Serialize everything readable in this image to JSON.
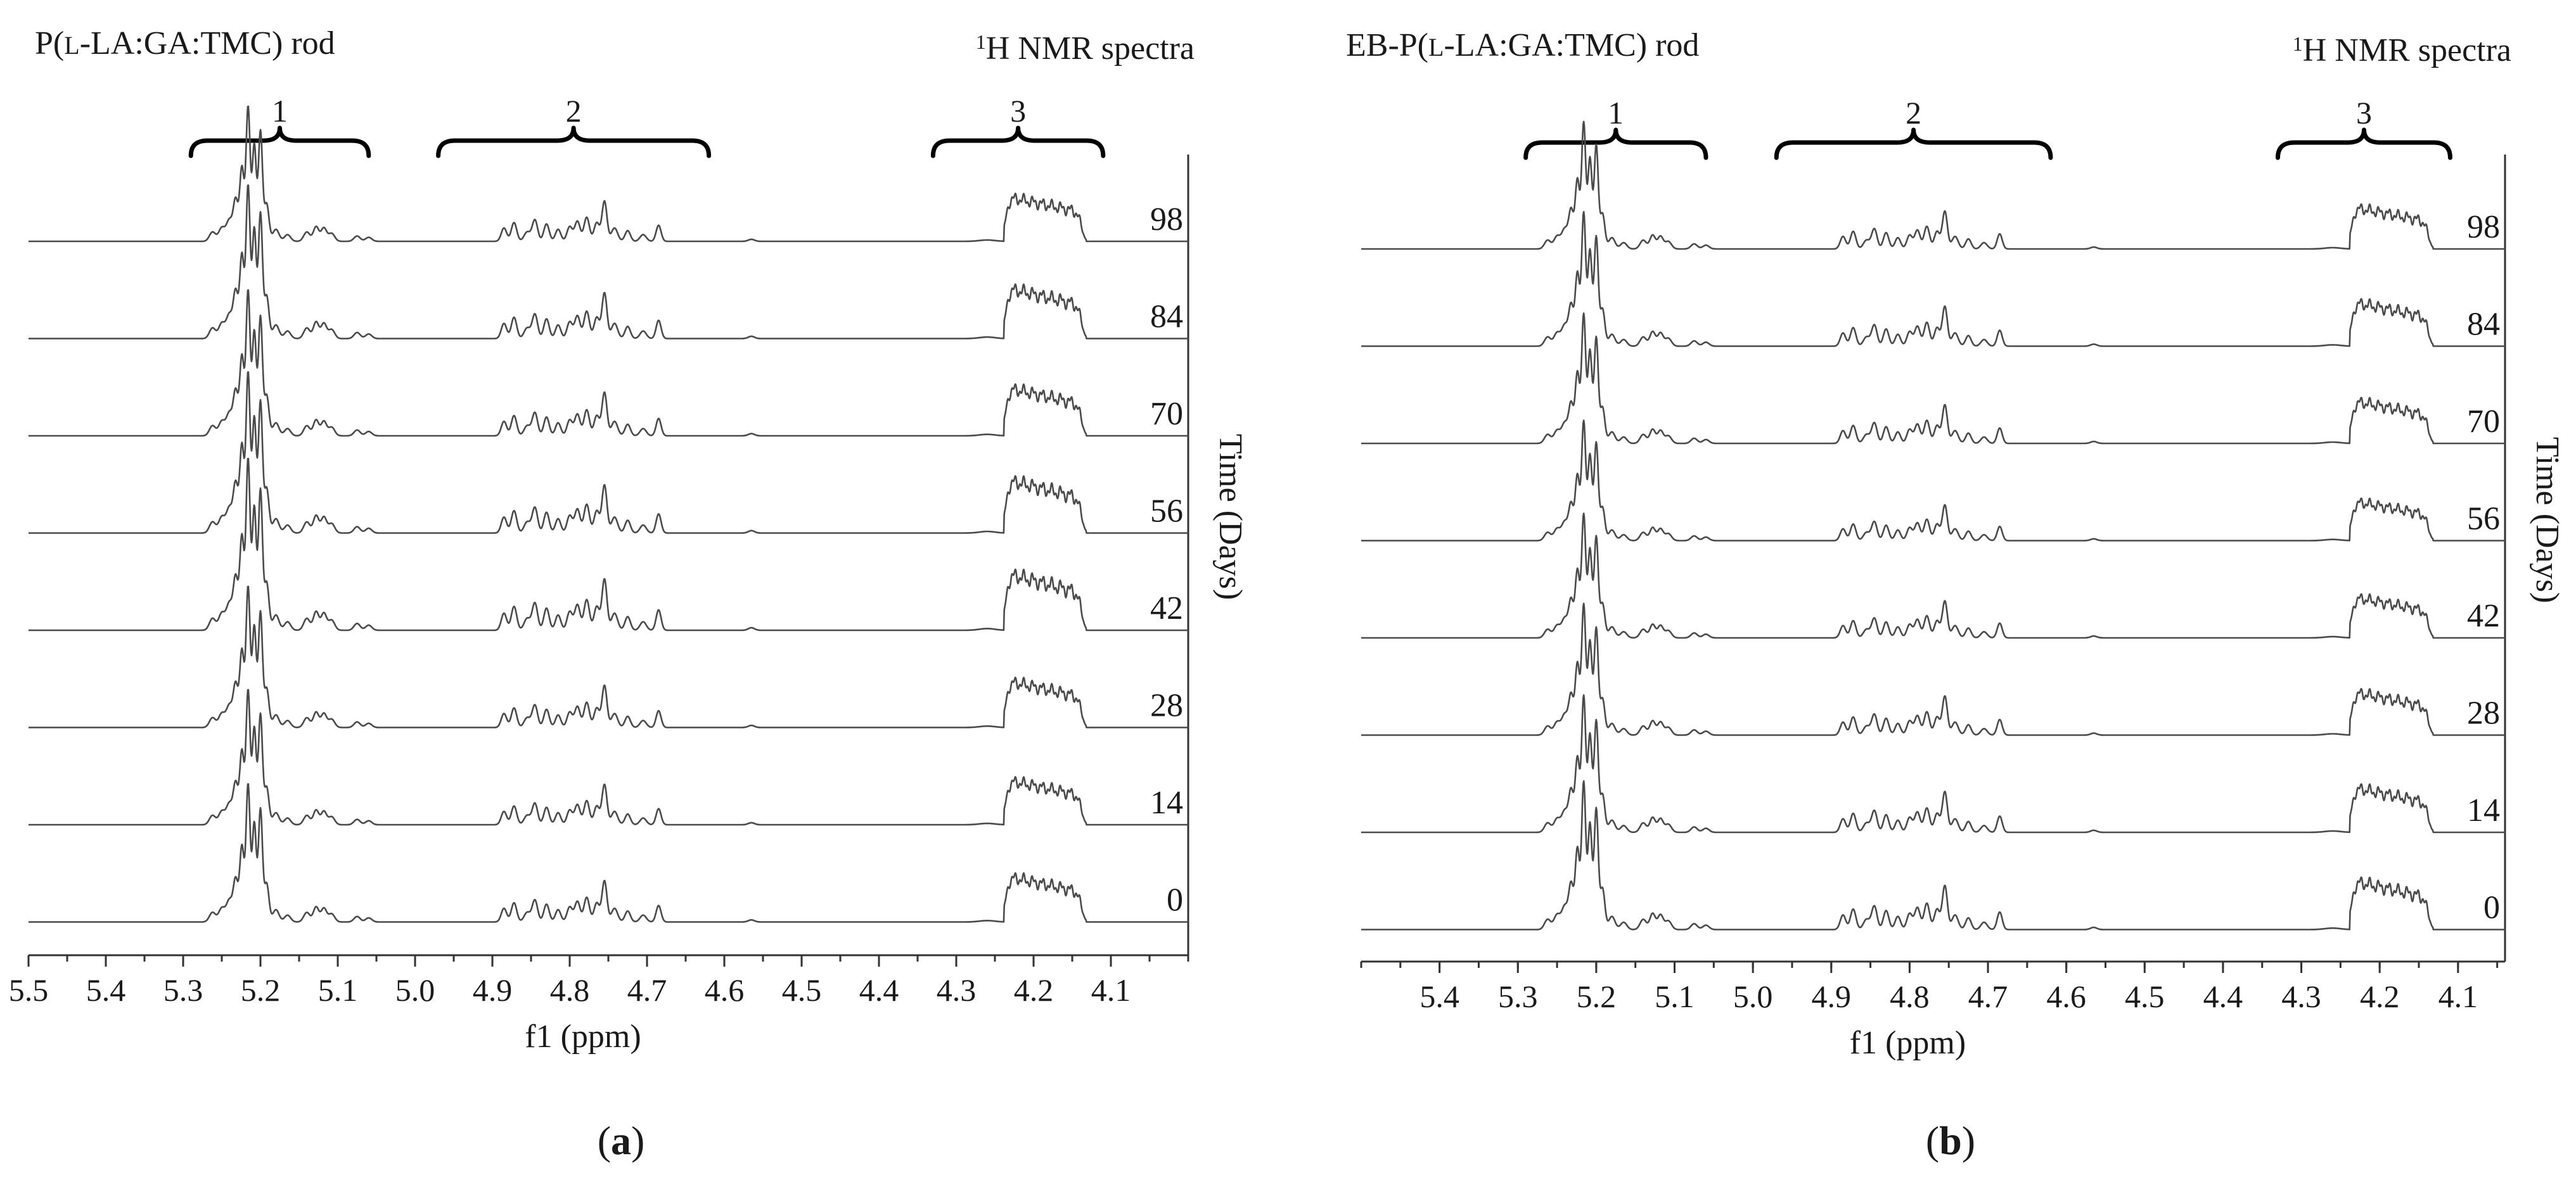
{
  "chart_data": [
    {
      "type": "line",
      "panel_label": "a",
      "title": "P(l-LA:GA:TMC) rod",
      "title_parts": {
        "prefix": "P(",
        "small_caps": "l",
        "suffix": "-LA:GA:TMC) rod"
      },
      "spectra_label": {
        "sup": "1",
        "text": "H NMR spectra"
      },
      "xlabel": "f1 (ppm)",
      "ylabel": "Time (Days)",
      "xlim": [
        5.5,
        4.0
      ],
      "xticks": [
        5.5,
        5.4,
        5.3,
        5.2,
        5.1,
        5.0,
        4.9,
        4.8,
        4.7,
        4.6,
        4.5,
        4.4,
        4.3,
        4.2,
        4.1
      ],
      "xtick_labels": [
        "5.5",
        "5.4",
        "5.3",
        "5.2",
        "5.1",
        "5.0",
        "4.9",
        "4.8",
        "4.7",
        "4.6",
        "4.5",
        "4.4",
        "4.3",
        "4.2",
        "4.1"
      ],
      "regions": [
        {
          "label": "1",
          "range_ppm": [
            5.29,
            5.06
          ]
        },
        {
          "label": "2",
          "range_ppm": [
            4.97,
            4.62
          ]
        },
        {
          "label": "3",
          "range_ppm": [
            4.33,
            4.11
          ]
        }
      ],
      "series": [
        {
          "name": "98",
          "intensity": 0.88
        },
        {
          "name": "84",
          "intensity": 1.0
        },
        {
          "name": "70",
          "intensity": 0.95
        },
        {
          "name": "56",
          "intensity": 1.05
        },
        {
          "name": "42",
          "intensity": 1.12
        },
        {
          "name": "28",
          "intensity": 0.92
        },
        {
          "name": "14",
          "intensity": 0.88
        },
        {
          "name": "0",
          "intensity": 0.9
        }
      ]
    },
    {
      "type": "line",
      "panel_label": "b",
      "title": "EB-P(l-LA:GA:TMC) rod",
      "title_parts": {
        "prefix": "EB-P(",
        "small_caps": "l",
        "suffix": "-LA:GA:TMC) rod"
      },
      "spectra_label": {
        "sup": "1",
        "text": "H NMR spectra"
      },
      "xlabel": "f1 (ppm)",
      "ylabel": "Time (Days)",
      "xlim": [
        5.5,
        4.04
      ],
      "xticks": [
        5.4,
        5.3,
        5.2,
        5.1,
        5.0,
        4.9,
        4.8,
        4.7,
        4.6,
        4.5,
        4.4,
        4.3,
        4.2,
        4.1
      ],
      "xtick_labels": [
        "5.4",
        "5.3",
        "5.2",
        "5.1",
        "5.0",
        "4.9",
        "4.8",
        "4.7",
        "4.6",
        "4.5",
        "4.4",
        "4.3",
        "4.2",
        "4.1"
      ],
      "regions": [
        {
          "label": "1",
          "range_ppm": [
            5.29,
            5.06
          ]
        },
        {
          "label": "2",
          "range_ppm": [
            4.97,
            4.62
          ]
        },
        {
          "label": "3",
          "range_ppm": [
            4.33,
            4.11
          ]
        }
      ],
      "series": [
        {
          "name": "98",
          "intensity": 0.9
        },
        {
          "name": "84",
          "intensity": 0.95
        },
        {
          "name": "70",
          "intensity": 0.92
        },
        {
          "name": "56",
          "intensity": 0.85
        },
        {
          "name": "42",
          "intensity": 0.88
        },
        {
          "name": "28",
          "intensity": 0.93
        },
        {
          "name": "14",
          "intensity": 0.97
        },
        {
          "name": "0",
          "intensity": 1.05
        }
      ]
    }
  ],
  "panel_letters": {
    "a": "a",
    "b": "b"
  }
}
